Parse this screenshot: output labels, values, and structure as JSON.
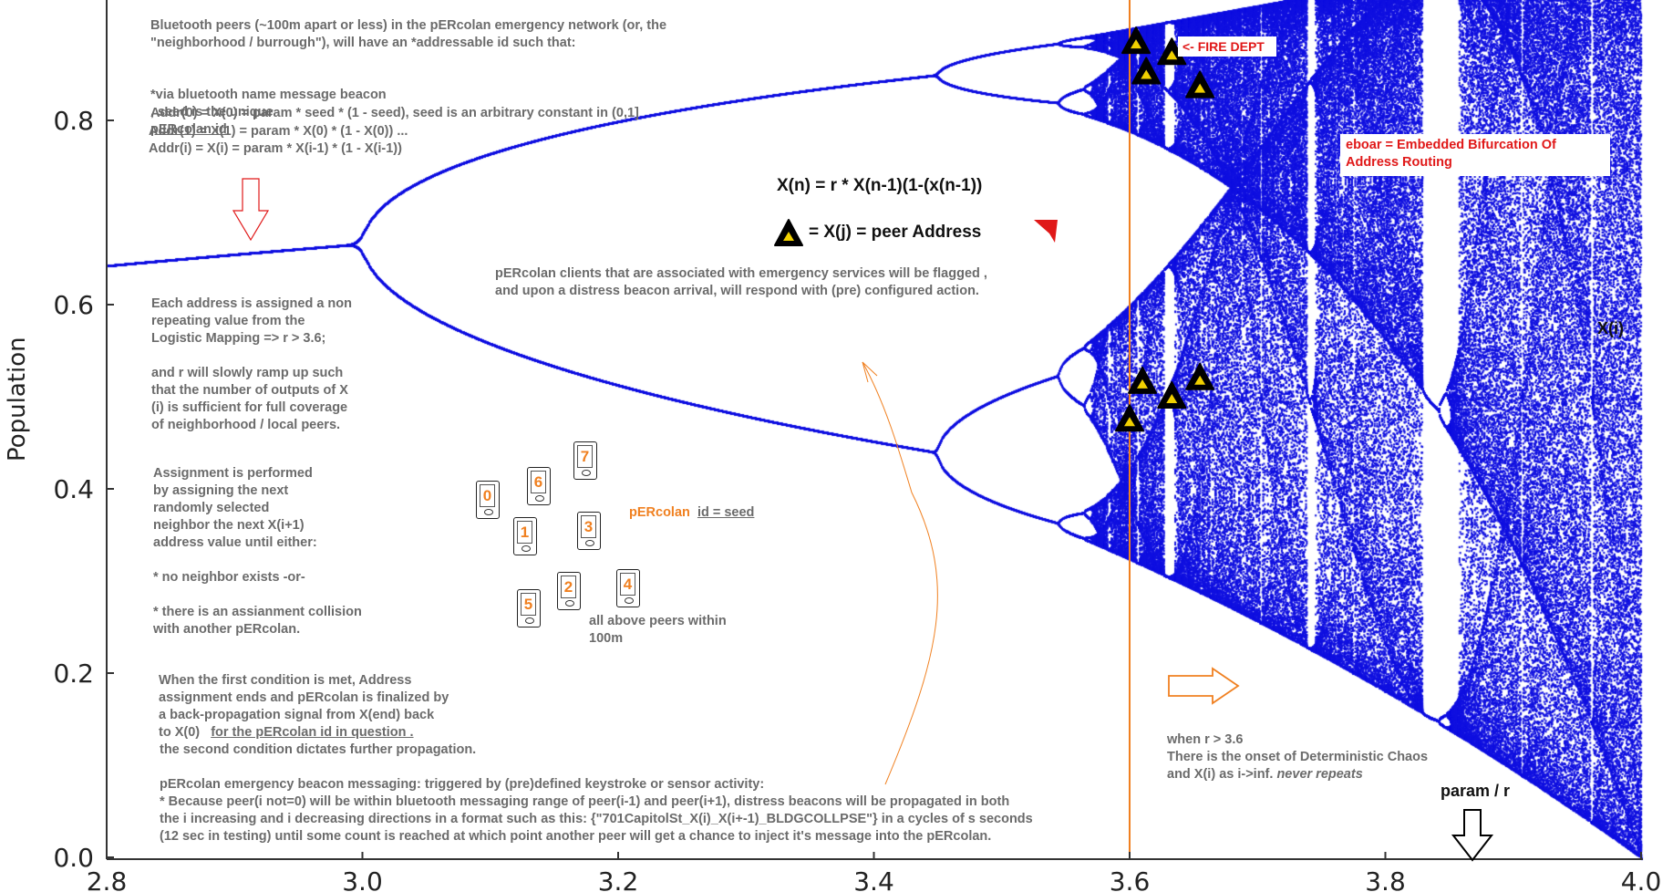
{
  "chart_data": {
    "type": "scatter",
    "title": "",
    "xlabel": "",
    "ylabel": "Population",
    "xlim": [
      2.8,
      4.0
    ],
    "ylim": [
      0.0,
      0.92
    ],
    "x_ticks": [
      "2.8",
      "3.0",
      "3.2",
      "3.4",
      "3.6",
      "3.8",
      "4.0"
    ],
    "y_ticks": [
      "0.0",
      "0.2",
      "0.4",
      "0.6",
      "0.8"
    ],
    "series": [
      {
        "color": "#1010e0",
        "x": [
          3.6
        ],
        "y": [
          0.0
        ]
      }
    ],
    "vline_x": 3.6,
    "peer_markers": [
      {
        "x": 3.605,
        "y": 0.885
      },
      {
        "x": 3.613,
        "y": 0.852
      },
      {
        "x": 3.633,
        "y": 0.873
      },
      {
        "x": 3.655,
        "y": 0.837
      },
      {
        "x": 3.61,
        "y": 0.516
      },
      {
        "x": 3.633,
        "y": 0.5
      },
      {
        "x": 3.655,
        "y": 0.52
      },
      {
        "x": 3.6,
        "y": 0.475
      }
    ]
  },
  "colors": {
    "plot": "#1010e0",
    "vline": "#f08020",
    "annot_red": "#e01818",
    "annot_orange": "#f08020",
    "note_gray": "#6b6b6b"
  },
  "notes": {
    "intro_l1": "Bluetooth peers (~100m apart or less) in the pERcolan emergency network (or, the",
    "intro_l2": "\"neighborhood / burrough\"), will have an *addressable id such that:",
    "beacon_a": "*via bluetooth name message beacon",
    "beacon_b": ", seed is the unique",
    "beacon_c": "pERcolan id",
    "addr0": "Addr(0) = X(0) = param * seed * (1 - seed), seed is an arbitrary constant in (0,1]",
    "addr1": "Addr(1) = X(1) = param * X(0) * (1 - X(0)) ...",
    "addri": "Addr(i)  = X(i)  = param * X(i-1) * (1 - X(i-1))",
    "each_address": "Each address is assigned a non\nrepeating value from the\nLogistic Mapping => r > 3.6;\n\nand r will slowly ramp up such\nthat the number of outputs of X\n(i) is sufficient for full coverage\nof neighborhood / local peers.",
    "assignment": "Assignment is performed\nby assigning the next\nrandomly selected\nneighbor the next X(i+1)\naddress value until either:\n\n* no neighbor exists -or-\n\n* there is an assianment collision\n   with another pERcolan.",
    "first_cond": "When the first condition is met, Address\nassignment ends and pERcolan is finalized by\na back-propagation signal from X(end) back\nto X(0)",
    "first_cond_u": "for the pERcolan id in question .",
    "second_cond": "the second condition dictates further propagation.",
    "emergency": "pERcolan emergency beacon messaging: triggered by (pre)defined keystroke or sensor activity:\n* Because peer(i not=0) will be within bluetooth messaging range of peer(i-1) and peer(i+1), distress beacons will be propagated in both\nthe i increasing and i decreasing directions in a format such as this: {\"701CapitolSt_X(i)_X(i+-1)_BLDGCOLLPSE\"} in a cycles of s seconds\n(12 sec in testing) until some count is reached at which point another peer will get a chance to inject it's message into the pERcolan.",
    "clients": "pERcolan clients that are associated with emergency services will be flagged ,\nand upon a distress beacon arrival, will respond with (pre) configured action.",
    "peers_within": "all above peers within\n100m",
    "id_seed_a": "pERcolan",
    "id_seed_b": "id = seed",
    "chaos_a": "when r > 3.6\nThere is the onset of Deterministic Chaos\nand X(i) as i->inf.",
    "chaos_b": "never repeats",
    "fire_dept": "<- FIRE DEPT",
    "eboar": "eboar = Embedded Bifurcation Of\nAddress Routing",
    "xi_label": "X(i)",
    "param_r": "param / r",
    "eq1": "X(n) = r * X(n-1)(1-(x(n-1))",
    "eq2": "= X(j) = peer Address"
  },
  "phones": [
    "0",
    "1",
    "2",
    "3",
    "4",
    "5",
    "6",
    "7"
  ]
}
